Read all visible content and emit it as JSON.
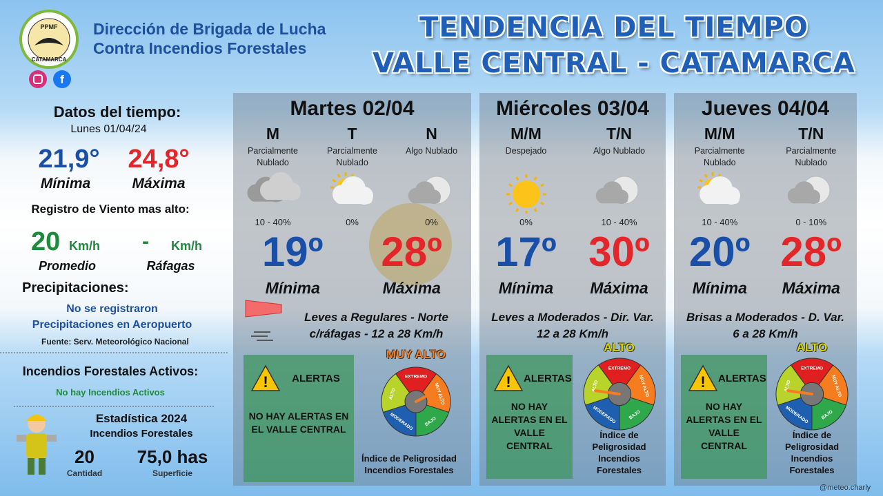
{
  "header": {
    "org_line1": "Dirección de Brigada de Lucha",
    "org_line2": "Contra Incendios Forestales",
    "logo_top": "PPMF",
    "logo_bottom": "CATAMARCA",
    "title_line1": "TENDENCIA DEL TIEMPO",
    "title_line2": "VALLE CENTRAL - CATAMARCA"
  },
  "left": {
    "datos_title": "Datos del tiempo:",
    "date": "Lunes 01/04/24",
    "min": "21,9°",
    "min_label": "Mínima",
    "max": "24,8°",
    "max_label": "Máxima",
    "wind_title": "Registro de Viento mas alto:",
    "wind_avg": "20",
    "wind_avg_unit": "Km/h",
    "wind_avg_label": "Promedio",
    "gust": "-",
    "gust_unit": "Km/h",
    "gust_label": "Ráfagas",
    "precip_title": "Precipitaciones:",
    "precip_line1": "No se registraron",
    "precip_line2": "Precipitaciones en Aeropuerto",
    "source": "Fuente: Serv. Meteorológico Nacional",
    "fires_title": "Incendios Forestales Activos:",
    "fires_status": "No hay Incendios Activos",
    "stats_title": "Estadística 2024",
    "stats_subtitle": "Incendios Forestales",
    "count": "20",
    "count_label": "Cantidad",
    "area": "75,0 has",
    "area_label": "Superficie"
  },
  "gauge_labels": [
    "EXTREMO",
    "MUY ALTO",
    "BAJO",
    "MODERADO",
    "ALTO"
  ],
  "days": [
    {
      "title": "Martes 02/04",
      "periods": [
        {
          "code": "M",
          "desc": "Parcialmente Nublado",
          "prob": "10 - 40%"
        },
        {
          "code": "T",
          "desc": "Parcialmente Nublado",
          "prob": "0%"
        },
        {
          "code": "N",
          "desc": "Algo Nublado",
          "prob": "0%"
        }
      ],
      "min": "19º",
      "min_label": "Mínima",
      "max": "28º",
      "max_label": "Máxima",
      "wind_line1": "Leves a Regulares - Norte",
      "wind_line2": "c/ráfagas - 12 a 28 Km/h",
      "danger_level": "MUY ALTO",
      "alert_title": "ALERTAS",
      "alert_text": "NO HAY ALERTAS EN EL VALLE CENTRAL",
      "index_label": "Índice de Peligrosidad Incendios Forestales"
    },
    {
      "title": "Miércoles 03/04",
      "periods": [
        {
          "code": "M/M",
          "desc": "Despejado",
          "prob": "0%"
        },
        {
          "code": "T/N",
          "desc": "Algo Nublado",
          "prob": "10 - 40%"
        }
      ],
      "min": "17º",
      "min_label": "Mínima",
      "max": "30º",
      "max_label": "Máxima",
      "wind_line1": "Leves a Moderados - Dir. Var.",
      "wind_line2": "12 a 28 Km/h",
      "danger_level": "ALTO",
      "alert_title": "ALERTAS",
      "alert_text": "NO HAY ALERTAS EN EL VALLE CENTRAL",
      "index_label": "Índice de Peligrosidad Incendios Forestales"
    },
    {
      "title": "Jueves 04/04",
      "periods": [
        {
          "code": "M/M",
          "desc": "Parcialmente Nublado",
          "prob": "10 - 40%"
        },
        {
          "code": "T/N",
          "desc": "Parcialmente Nublado",
          "prob": "0 - 10%"
        }
      ],
      "min": "20º",
      "min_label": "Mínima",
      "max": "28º",
      "max_label": "Máxima",
      "wind_line1": "Brisas a Moderados - D. Var.",
      "wind_line2": "6 a 28 Km/h",
      "danger_level": "ALTO",
      "alert_title": "ALERTAS",
      "alert_text": "NO HAY ALERTAS EN EL VALLE CENTRAL",
      "index_label": "Índice de Peligrosidad Incendios Forestales"
    }
  ],
  "footer": "@meteo.charly"
}
